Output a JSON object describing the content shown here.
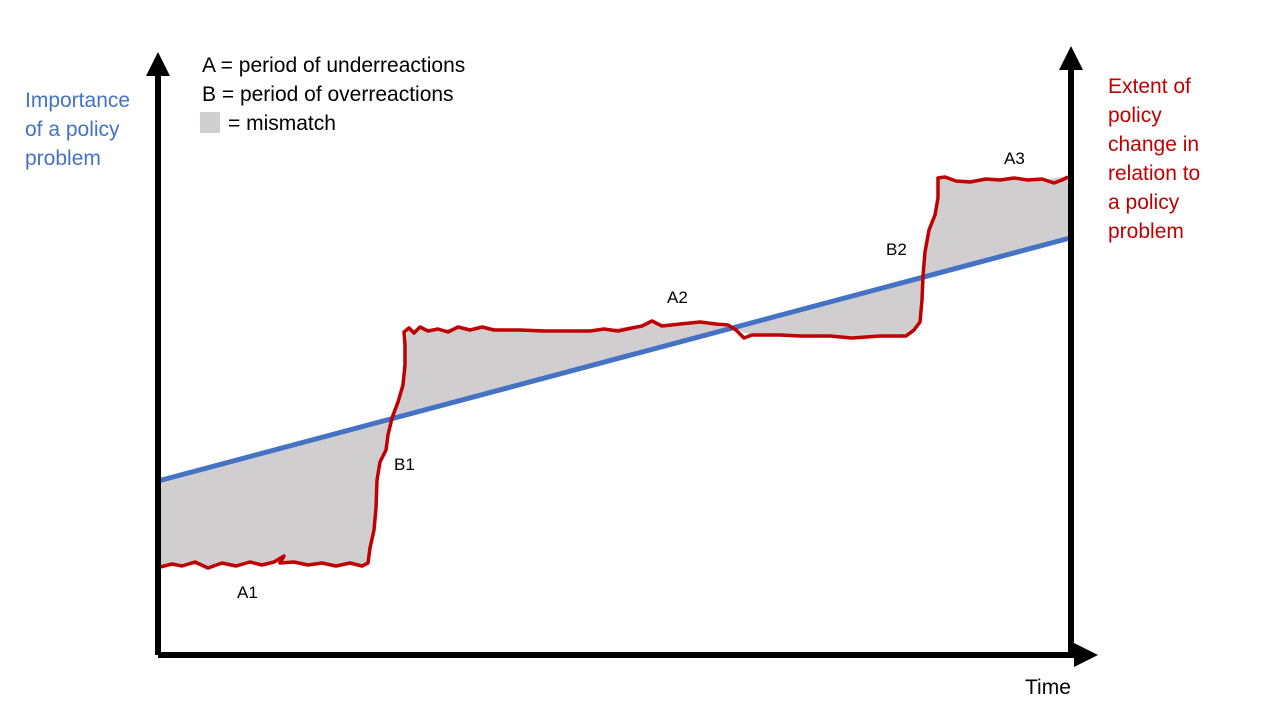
{
  "legend": {
    "a_def": "A = period of underreactions",
    "b_def": "B = period of overreactions",
    "mismatch_def": "= mismatch"
  },
  "left_axis": {
    "label_lines": [
      "Importance",
      "of a policy",
      "problem"
    ],
    "color": "#4472C4"
  },
  "right_axis": {
    "label_lines": [
      "Extent of",
      "policy",
      "change in",
      "relation to",
      "a policy",
      "problem"
    ],
    "color": "#C00000"
  },
  "x_axis": {
    "label": "Time"
  },
  "periods": {
    "a1": "A1",
    "b1": "B1",
    "a2": "A2",
    "b2": "B2",
    "a3": "A3"
  },
  "colors": {
    "importance_line": "#4472C4",
    "policy_line": "#C00000",
    "mismatch_fill": "#D0CECE",
    "axes": "#000000"
  }
}
